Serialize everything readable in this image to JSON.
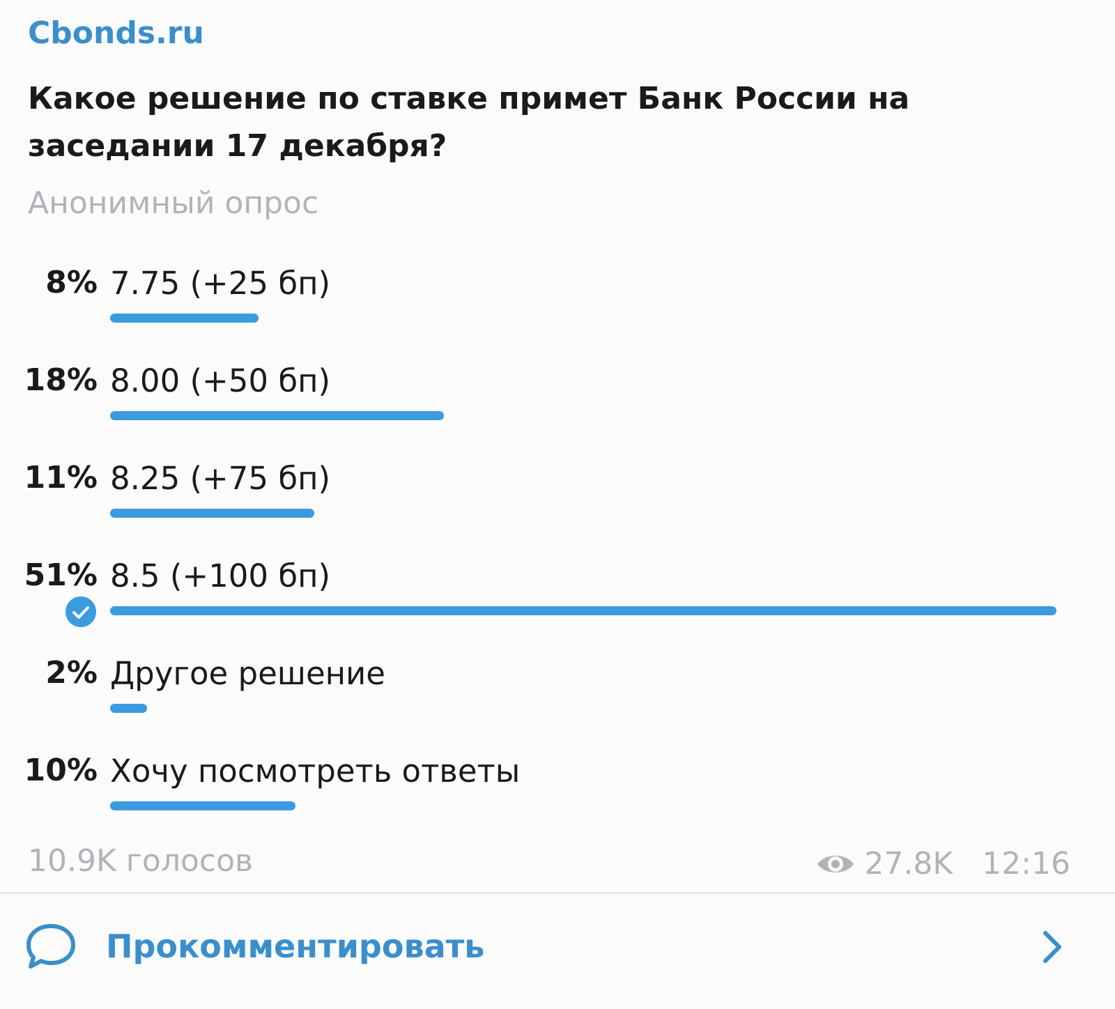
{
  "channel": {
    "name": "Cbonds.ru"
  },
  "poll": {
    "question": "Какое решение по ставке примет Банк России на заседании 17 декабря?",
    "type_label": "Анонимный опрос",
    "options": [
      {
        "percent_label": "8%",
        "percent": 8,
        "text": "7.75 (+25 бп)",
        "selected": false
      },
      {
        "percent_label": "18%",
        "percent": 18,
        "text": "8.00 (+50 бп)",
        "selected": false
      },
      {
        "percent_label": "11%",
        "percent": 11,
        "text": "8.25 (+75 бп)",
        "selected": false
      },
      {
        "percent_label": "51%",
        "percent": 51,
        "text": "8.5 (+100 бп)",
        "selected": true
      },
      {
        "percent_label": "2%",
        "percent": 2,
        "text": "Другое решение",
        "selected": false
      },
      {
        "percent_label": "10%",
        "percent": 10,
        "text": "Хочу посмотреть ответы",
        "selected": false
      }
    ],
    "votes_label": "10.9K голосов"
  },
  "meta": {
    "views": "27.8K",
    "time": "12:16",
    "views_icon": "eye-icon"
  },
  "comment": {
    "label": "Прокомментировать",
    "icon": "comment-bubble-icon",
    "chevron_icon": "chevron-right-icon"
  },
  "colors": {
    "accent": "#3c9ae0",
    "link": "#3a8fcb",
    "muted": "#b0b3b8",
    "text": "#1a1a1a"
  }
}
